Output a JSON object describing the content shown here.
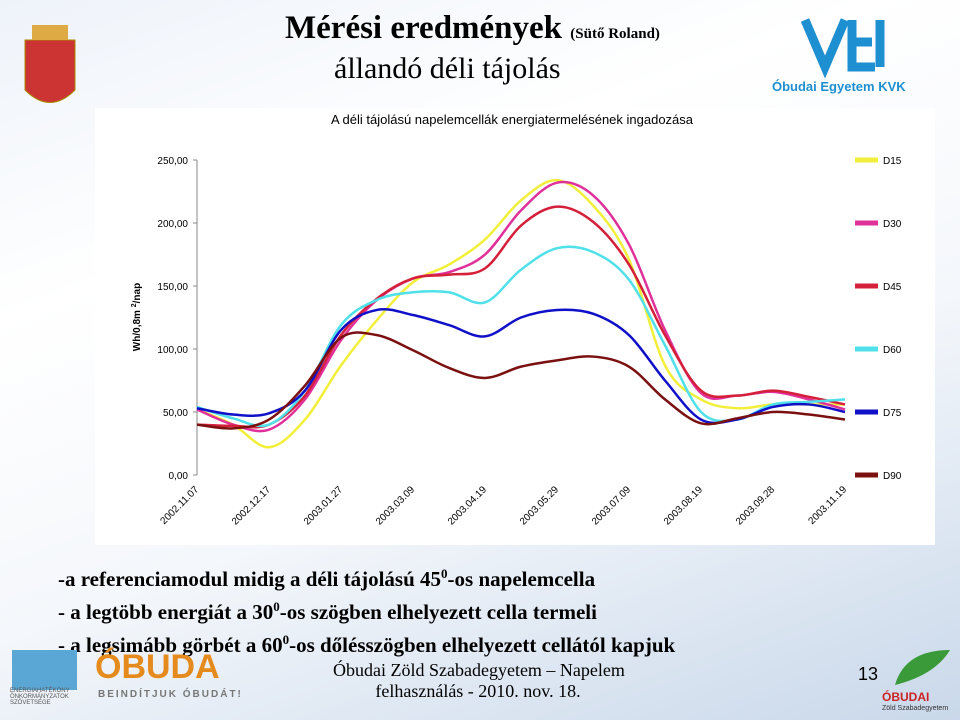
{
  "slide": {
    "title": "Mérési eredmények",
    "author": "(Sütő Roland)",
    "subtitle": "állandó déli tájolás",
    "org": "Óbudai Egyetem KVK",
    "bullets": [
      [
        "-a referenciamodul midig a déli tájolású 45",
        "0",
        "-os napelemcella"
      ],
      [
        "- a legtöbb energiát a 30",
        "0",
        "-os szögben elhelyezett cella termeli"
      ],
      [
        "- a legsimább görbét a 60",
        "0",
        "-os dőlésszögben elhelyezett cellától kapjuk"
      ]
    ],
    "footer": [
      "Óbudai Zöld Szabadegyetem – Napelem",
      "felhasználás - 2010. nov. 18."
    ],
    "page": "13",
    "logo_left": "ÓBUDA",
    "logo_left_slogan": "BEINDÍTJUK ÓBUDÁT!",
    "logo_assoc": "ENERGIAHATÉKONY ÖNKORMÁNYZATOK SZÖVETSÉGE",
    "logo_right": "ÓBUDAI",
    "logo_right_sub": "Zöld Szabadegyetem"
  },
  "chart_data": {
    "type": "line",
    "title": "A déli tájolású napelemcellák energiatermelésének ingadozása",
    "y_label": [
      "Wh/0,8m ",
      "2",
      "/nap"
    ],
    "categories": [
      "2002.11.07",
      null,
      "2002.12.17",
      null,
      "2003.01.27",
      null,
      "2003.03.09",
      null,
      "2003.04.19",
      null,
      "2003.05.29",
      null,
      "2003.07.09",
      null,
      "2003.08.19",
      null,
      "2003.09.28",
      null,
      "2003.11.19"
    ],
    "ylim": [
      0,
      250
    ],
    "yticks": [
      {
        "value": 0,
        "label": "0,00"
      },
      {
        "value": 50,
        "label": "50,00"
      },
      {
        "value": 100,
        "label": "100,00"
      },
      {
        "value": 150,
        "label": "150,00"
      },
      {
        "value": 200,
        "label": "200,00"
      },
      {
        "value": 250,
        "label": "250,00"
      }
    ],
    "series": [
      {
        "name": "D15",
        "color": "#f2ef3a",
        "values": [
          52,
          40,
          22,
          44,
          87,
          123,
          153,
          167,
          187,
          218,
          234,
          214,
          171,
          87,
          60,
          53,
          56,
          56,
          56
        ]
      },
      {
        "name": "D30",
        "color": "#e0309a",
        "values": [
          52,
          40,
          36,
          60,
          107,
          139,
          156,
          161,
          175,
          210,
          232,
          222,
          183,
          115,
          65,
          63,
          66,
          60,
          52
        ]
      },
      {
        "name": "D45",
        "color": "#d4203a",
        "values": [
          40,
          39,
          40,
          63,
          111,
          140,
          156,
          159,
          164,
          198,
          213,
          201,
          167,
          111,
          67,
          63,
          67,
          62,
          56
        ]
      },
      {
        "name": "D60",
        "color": "#4fe0ea",
        "values": [
          54,
          45,
          40,
          67,
          119,
          139,
          145,
          145,
          137,
          163,
          180,
          177,
          155,
          103,
          50,
          44,
          56,
          58,
          60
        ]
      },
      {
        "name": "D75",
        "color": "#1010c8",
        "values": [
          53,
          48,
          49,
          67,
          115,
          131,
          127,
          119,
          110,
          125,
          131,
          128,
          111,
          75,
          44,
          44,
          54,
          56,
          50
        ]
      },
      {
        "name": "D90",
        "color": "#7a1010",
        "values": [
          40,
          37,
          44,
          71,
          109,
          111,
          99,
          85,
          77,
          86,
          91,
          94,
          86,
          60,
          41,
          45,
          50,
          48,
          44
        ]
      }
    ]
  }
}
